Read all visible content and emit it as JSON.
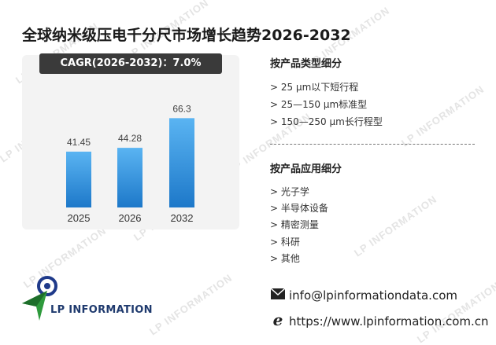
{
  "title": "全球纳米级压电千分尺市场增长趋势2026-2032",
  "cagr": "CAGR(2026-2032)：7.0%",
  "chart_data": {
    "type": "bar",
    "categories": [
      "2025",
      "2026",
      "2032"
    ],
    "values": [
      41.45,
      44.28,
      66.3
    ],
    "ylim": [
      0,
      70
    ],
    "grid": false,
    "colors": {
      "bar_top": "#5ab4f2",
      "bar_bottom": "#1d78c9"
    }
  },
  "product_type": {
    "title": "按产品类型细分",
    "items": [
      "> 25 μm以下短行程",
      "> 25—150 μm标准型",
      "> 150—250 μm长行程型"
    ]
  },
  "application": {
    "title": "按产品应用细分",
    "items": [
      "> 光子学",
      "> 半导体设备",
      "> 精密测量",
      "> 科研",
      "> 其他"
    ]
  },
  "contact": {
    "email": "info@lpinformationdata.com",
    "website": "https://www.lpinformation.com.cn",
    "email_icon": "envelope-icon",
    "web_icon": "browser-e-icon"
  },
  "logo": {
    "text": "LP INFORMATION"
  },
  "watermark": "LP INFORMATION"
}
